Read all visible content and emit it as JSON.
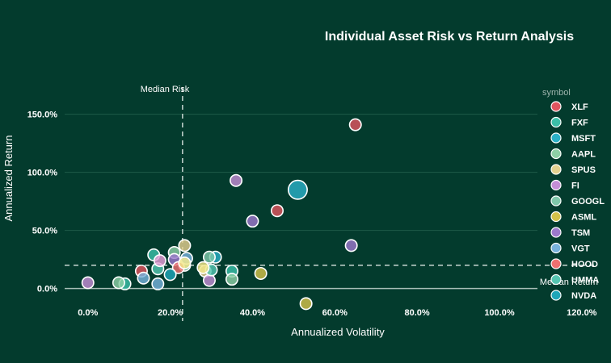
{
  "chart_data": {
    "type": "scatter",
    "title": "Individual Asset Risk vs Return Analysis",
    "xlabel": "Annualized Volatility",
    "ylabel": "Annualized Return",
    "xlim": [
      -0.08,
      1.22
    ],
    "ylim": [
      -0.28,
      1.72
    ],
    "x_ticks": [
      0,
      0.2,
      0.4,
      0.6,
      0.8,
      1.0,
      1.2
    ],
    "x_tick_labels": [
      "0.0%",
      "20.0%",
      "40.0%",
      "60.0%",
      "80.0%",
      "100.0%",
      "120.0%"
    ],
    "y_ticks": [
      0,
      0.5,
      1.0,
      1.5
    ],
    "y_tick_labels": [
      "0.0%",
      "50.0%",
      "100.0%",
      "150.0%"
    ],
    "grid": true,
    "legend_title": "symbol",
    "legend_placement": "right",
    "median_risk": {
      "value": 0.23,
      "label": "Median Risk"
    },
    "median_return": {
      "value": 0.2,
      "label": "Median Return"
    },
    "series": [
      {
        "name": "XLF",
        "color": "#e0555f",
        "points": [
          {
            "x": 0.65,
            "y": 1.41,
            "s": 0.8
          },
          {
            "x": 0.46,
            "y": 0.67,
            "s": 0.8
          },
          {
            "x": 0.13,
            "y": 0.15,
            "s": 0.8
          }
        ]
      },
      {
        "name": "FXF",
        "color": "#3cbfa8",
        "points": [
          {
            "x": 0.16,
            "y": 0.29,
            "s": 0.8
          },
          {
            "x": 0.35,
            "y": 0.15,
            "s": 0.8
          },
          {
            "x": 0.09,
            "y": 0.04,
            "s": 0.8
          }
        ]
      },
      {
        "name": "MSFT",
        "color": "#2ab0c6",
        "points": [
          {
            "x": 0.51,
            "y": 0.85,
            "s": 1.3
          },
          {
            "x": 0.31,
            "y": 0.27,
            "s": 0.8
          }
        ]
      },
      {
        "name": "AAPL",
        "color": "#8ed0a6",
        "points": [
          {
            "x": 0.21,
            "y": 0.31,
            "s": 0.8
          },
          {
            "x": 0.35,
            "y": 0.08,
            "s": 0.8
          },
          {
            "x": 0.075,
            "y": 0.05,
            "s": 0.8
          }
        ]
      },
      {
        "name": "SPUS",
        "color": "#e4d08f",
        "points": [
          {
            "x": 0.235,
            "y": 0.37,
            "s": 0.8
          },
          {
            "x": 0.285,
            "y": 0.15,
            "s": 0.8
          }
        ]
      },
      {
        "name": "FI",
        "color": "#c48ed6",
        "points": [
          {
            "x": 0.36,
            "y": 0.93,
            "s": 0.8
          },
          {
            "x": 0.0,
            "y": 0.05,
            "s": 0.8
          },
          {
            "x": 0.295,
            "y": 0.07,
            "s": 0.8
          }
        ]
      },
      {
        "name": "GOOGL",
        "color": "#7fc8aa",
        "points": [
          {
            "x": 0.235,
            "y": 0.2,
            "s": 0.8
          },
          {
            "x": 0.295,
            "y": 0.27,
            "s": 0.8
          }
        ]
      },
      {
        "name": "ASML",
        "color": "#d4c24a",
        "points": [
          {
            "x": 0.53,
            "y": -0.13,
            "s": 0.8
          },
          {
            "x": 0.42,
            "y": 0.13,
            "s": 0.8
          }
        ]
      },
      {
        "name": "TSM",
        "color": "#9c78cc",
        "points": [
          {
            "x": 0.4,
            "y": 0.58,
            "s": 0.8
          },
          {
            "x": 0.64,
            "y": 0.37,
            "s": 0.8
          },
          {
            "x": 0.21,
            "y": 0.25,
            "s": 0.8
          }
        ]
      },
      {
        "name": "VGT",
        "color": "#78b2dc",
        "points": [
          {
            "x": 0.24,
            "y": 0.26,
            "s": 0.8
          },
          {
            "x": 0.17,
            "y": 0.04,
            "s": 0.8
          },
          {
            "x": 0.135,
            "y": 0.09,
            "s": 0.8
          }
        ]
      },
      {
        "name": "HOOD",
        "color": "#ef7070",
        "points": [
          {
            "x": 0.22,
            "y": 0.18,
            "s": 0.8
          }
        ]
      },
      {
        "name": "UMMA",
        "color": "#56c7b2",
        "points": [
          {
            "x": 0.17,
            "y": 0.17,
            "s": 0.8
          },
          {
            "x": 0.3,
            "y": 0.16,
            "s": 0.8
          }
        ]
      },
      {
        "name": "NVDA",
        "color": "#1fa6b8",
        "points": [
          {
            "x": 0.2,
            "y": 0.12,
            "s": 0.8
          }
        ]
      },
      {
        "name": "",
        "color": "#e89fd8",
        "points": [
          {
            "x": 0.175,
            "y": 0.24,
            "s": 0.8
          }
        ]
      },
      {
        "name": "",
        "color": "#f1e68a",
        "points": [
          {
            "x": 0.28,
            "y": 0.18,
            "s": 0.8
          },
          {
            "x": 0.235,
            "y": 0.22,
            "s": 0.8
          }
        ]
      }
    ]
  }
}
